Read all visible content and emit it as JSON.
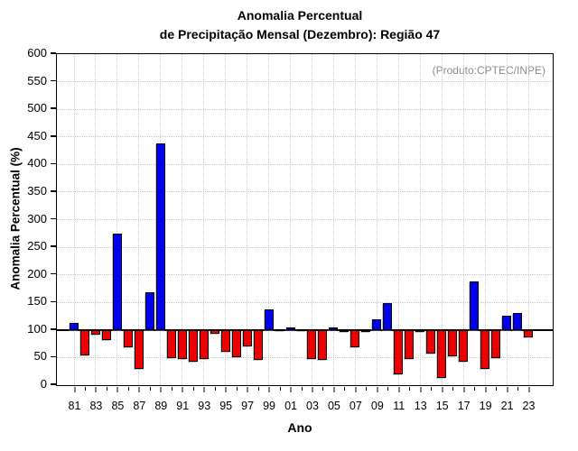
{
  "header": {
    "title_line1": "Anomalia Percentual",
    "title_line2": "de Precipitação Mensal (Dezembro): Região 47",
    "annotation": "(Produto:CPTEC/INPE)"
  },
  "chart_data": {
    "type": "bar",
    "title": "Anomalia Percentual de Precipitação Mensal (Dezembro): Região 47",
    "xlabel": "Ano",
    "ylabel": "Anomalia Percentual (%)",
    "annotation": "(Produto:CPTEC/INPE)",
    "ylim": [
      0,
      600
    ],
    "ytick_step": 50,
    "y_ticks": [
      0,
      50,
      100,
      150,
      200,
      250,
      300,
      350,
      400,
      450,
      500,
      550,
      600
    ],
    "baseline": 100,
    "grid": "dotted",
    "years": [
      1981,
      1982,
      1983,
      1984,
      1985,
      1986,
      1987,
      1988,
      1989,
      1990,
      1991,
      1992,
      1993,
      1994,
      1995,
      1996,
      1997,
      1998,
      1999,
      2000,
      2001,
      2002,
      2003,
      2004,
      2005,
      2006,
      2007,
      2008,
      2009,
      2010,
      2011,
      2012,
      2013,
      2014,
      2015,
      2016,
      2017,
      2018,
      2019,
      2020,
      2021,
      2022,
      2023
    ],
    "x_tick_labels": [
      "81",
      "83",
      "85",
      "87",
      "89",
      "91",
      "93",
      "95",
      "97",
      "99",
      "01",
      "03",
      "05",
      "07",
      "09",
      "11",
      "13",
      "15",
      "17",
      "19",
      "21",
      "23"
    ],
    "values": [
      112,
      54,
      91,
      81,
      275,
      69,
      29,
      168,
      438,
      49,
      48,
      43,
      48,
      93,
      60,
      51,
      70,
      46,
      138,
      102,
      104,
      101,
      48,
      45,
      105,
      96,
      69,
      98,
      119,
      149,
      19,
      48,
      97,
      57,
      13,
      53,
      43,
      188,
      29,
      49,
      126,
      130,
      86
    ],
    "colors": {
      "above_baseline": "#0000ee",
      "below_baseline": "#ee0000",
      "grid": "#c8c8c8",
      "axis": "#000000",
      "annotation_text": "#8c8c8c"
    }
  }
}
